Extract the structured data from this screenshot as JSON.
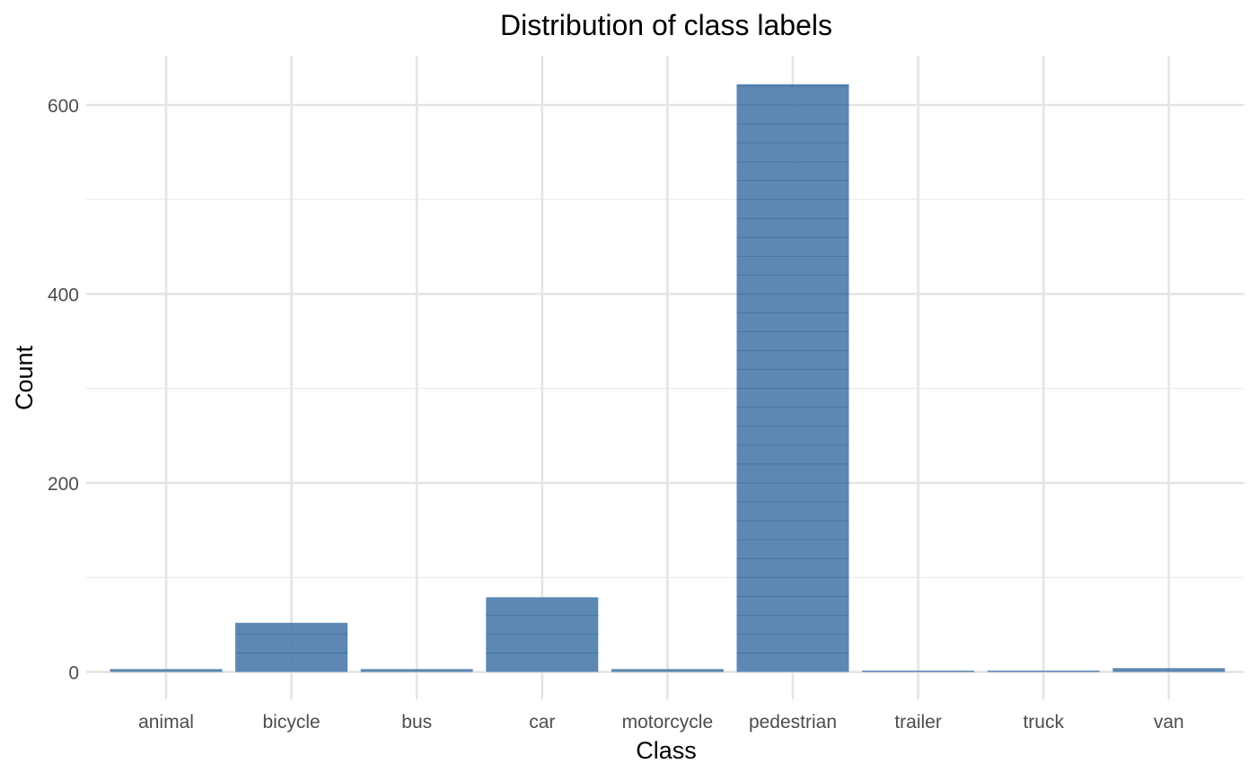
{
  "chart_data": {
    "type": "bar",
    "title": "Distribution of class labels",
    "xlabel": "Class",
    "ylabel": "Count",
    "categories": [
      "animal",
      "bicycle",
      "bus",
      "car",
      "motorcycle",
      "pedestrian",
      "trailer",
      "truck",
      "van"
    ],
    "values": [
      3,
      52,
      3,
      79,
      3,
      622,
      1,
      1,
      4
    ],
    "ylim": [
      -30,
      652
    ],
    "yticks": [
      0,
      200,
      400,
      600
    ],
    "yticks_labels": [
      "0",
      "200",
      "400",
      "600"
    ],
    "grid": true,
    "bar_color": "#4a7bab",
    "bar_stroke_color": "#3a6796"
  }
}
